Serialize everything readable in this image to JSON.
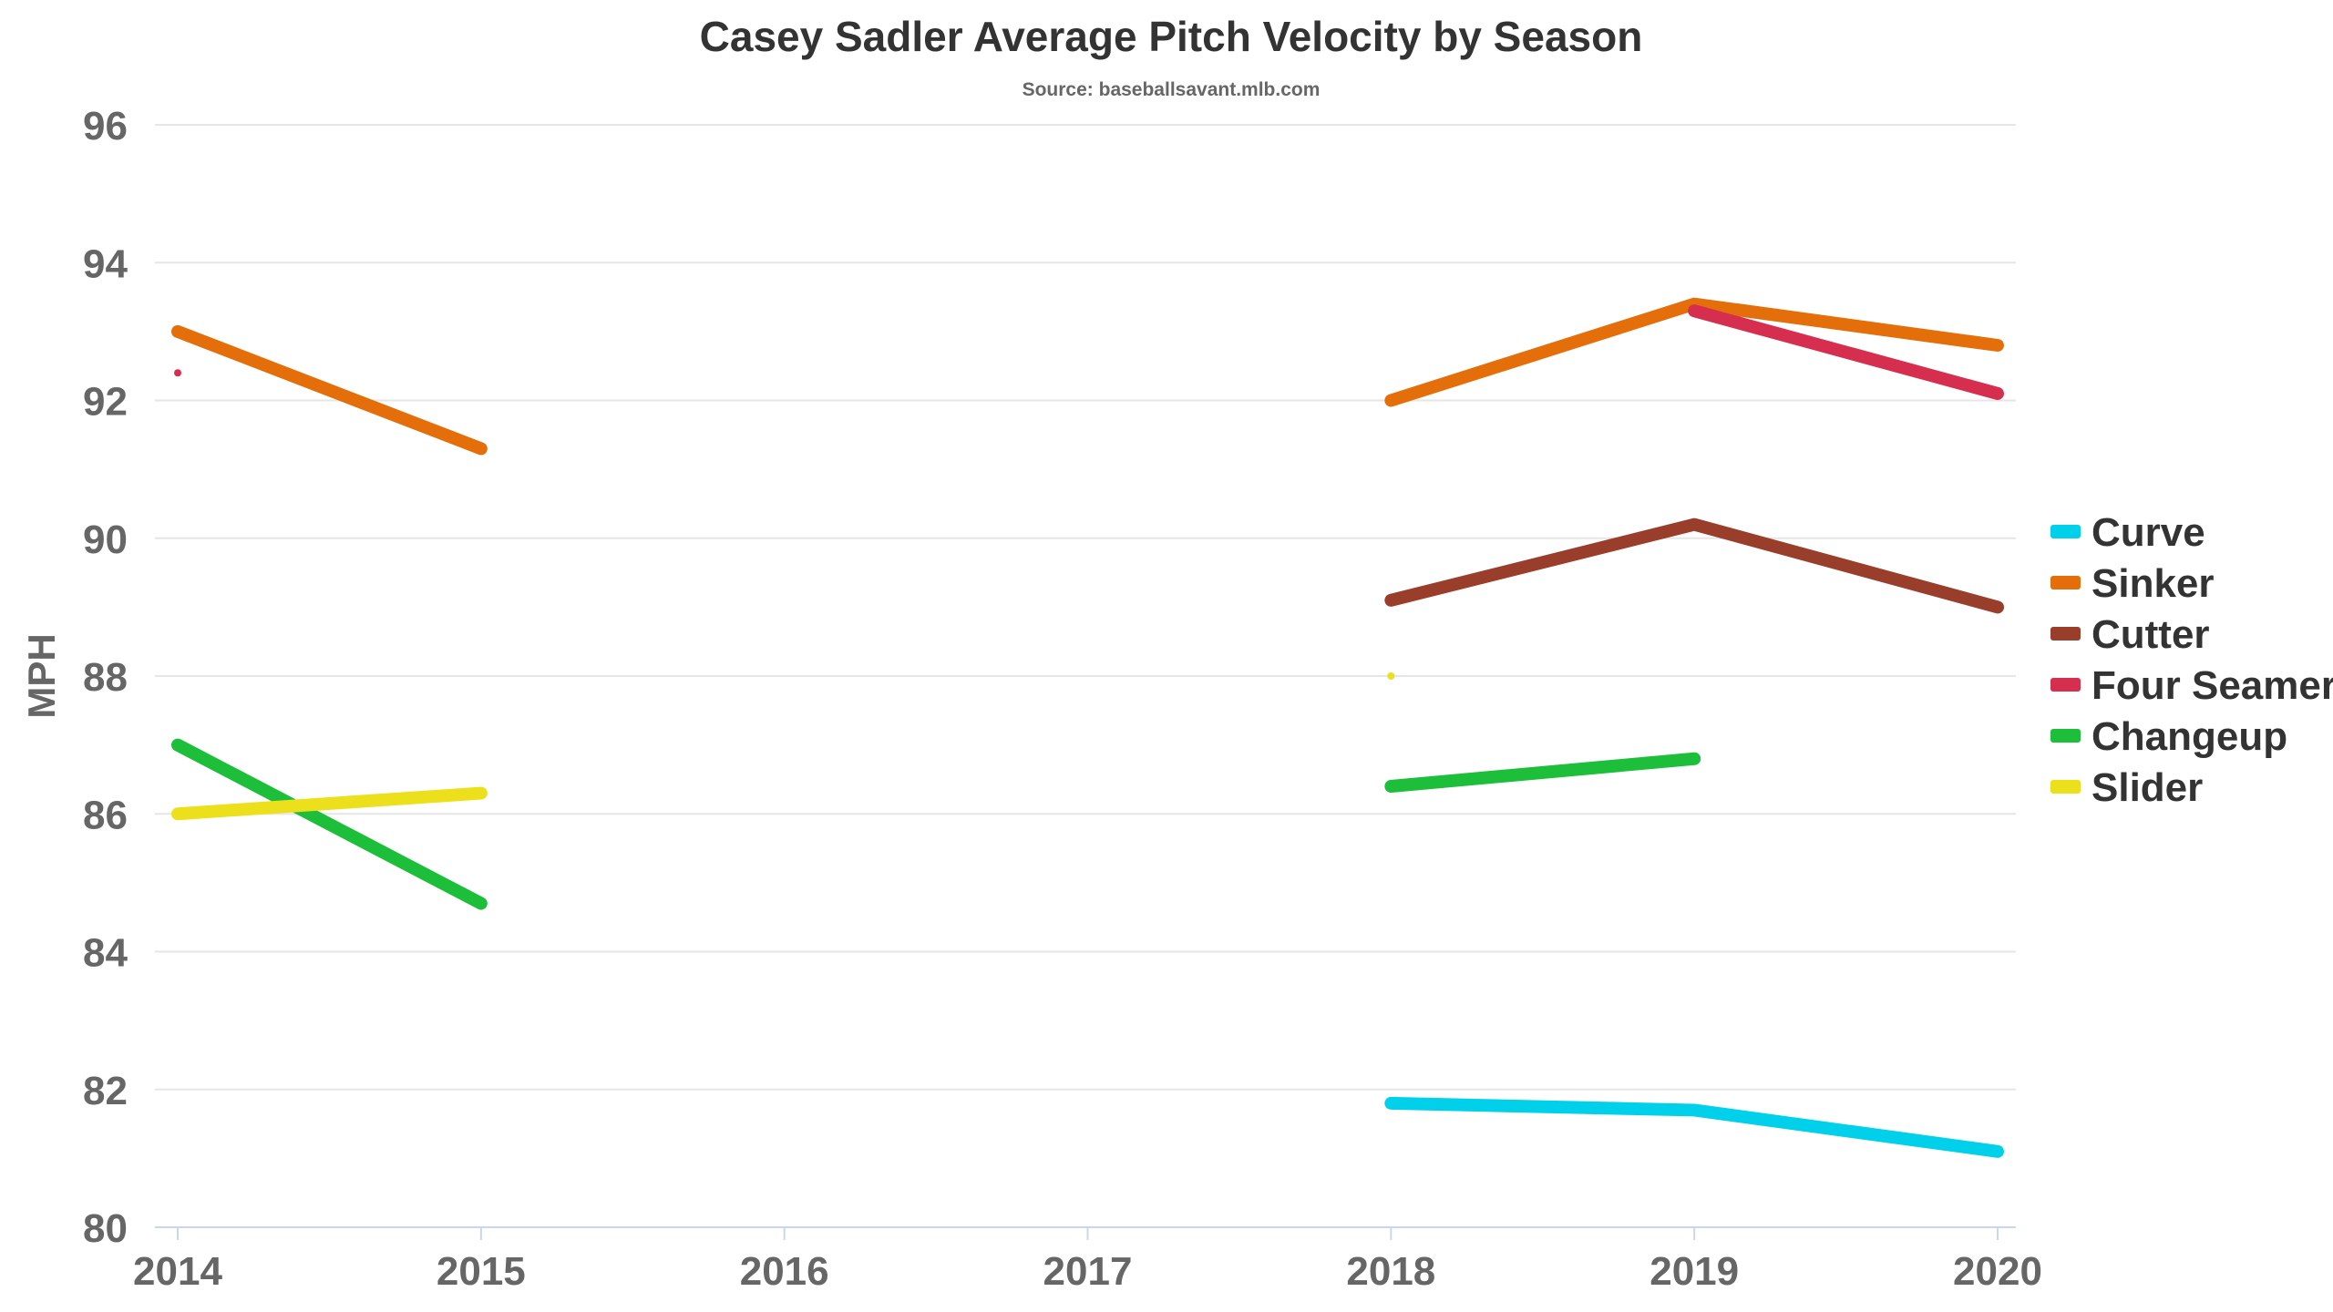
{
  "chart_data": {
    "type": "line",
    "title": "Casey Sadler Average Pitch Velocity by Season",
    "subtitle": "Source: baseballsavant.mlb.com",
    "xlabel": "",
    "ylabel": "MPH",
    "categories": [
      "2014",
      "2015",
      "2016",
      "2017",
      "2018",
      "2019",
      "2020"
    ],
    "ylim": [
      80,
      96
    ],
    "yticks": [
      "80",
      "82",
      "84",
      "86",
      "88",
      "90",
      "92",
      "94",
      "96"
    ],
    "grid": true,
    "legend_position": "right",
    "series": [
      {
        "name": "Curve",
        "color": "#00d0ea",
        "values": [
          null,
          null,
          null,
          null,
          81.8,
          81.7,
          81.1
        ]
      },
      {
        "name": "Sinker",
        "color": "#e46f0a",
        "values": [
          93.0,
          91.3,
          null,
          null,
          92.0,
          93.4,
          92.8
        ]
      },
      {
        "name": "Cutter",
        "color": "#983e2b",
        "values": [
          null,
          null,
          null,
          null,
          89.1,
          90.2,
          89.0
        ]
      },
      {
        "name": "Four Seamer",
        "color": "#d62e4f",
        "values": [
          92.4,
          null,
          null,
          null,
          null,
          93.3,
          92.1
        ]
      },
      {
        "name": "Changeup",
        "color": "#1dbe3a",
        "values": [
          87.0,
          84.7,
          null,
          null,
          86.4,
          86.8,
          null
        ]
      },
      {
        "name": "Slider",
        "color": "#ebe01b",
        "values": [
          86.0,
          86.3,
          null,
          null,
          88.0,
          null,
          null
        ]
      }
    ]
  }
}
